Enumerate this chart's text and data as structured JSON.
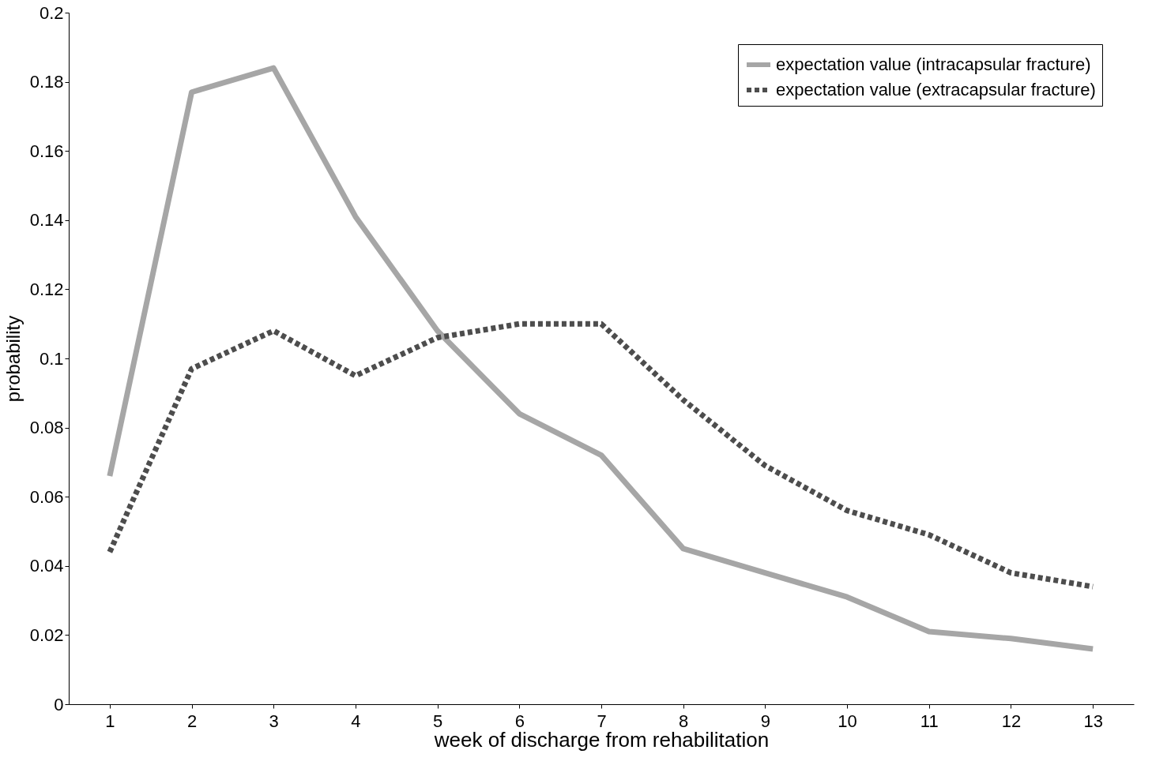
{
  "chart_data": {
    "type": "line",
    "xlabel": "week of discharge from rehabilitation",
    "ylabel": "probability",
    "x": [
      1,
      2,
      3,
      4,
      5,
      6,
      7,
      8,
      9,
      10,
      11,
      12,
      13
    ],
    "series": [
      {
        "name": "expectation value (intracapsular fracture)",
        "color": "#a6a6a6",
        "line_style": "solid",
        "values": [
          0.066,
          0.177,
          0.184,
          0.141,
          0.108,
          0.084,
          0.072,
          0.045,
          0.038,
          0.031,
          0.021,
          0.019,
          0.016
        ]
      },
      {
        "name": "expectation value (extracapsular fracture)",
        "color": "#4d4d4d",
        "line_style": "dotted",
        "values": [
          0.044,
          0.097,
          0.108,
          0.095,
          0.106,
          0.11,
          0.11,
          0.088,
          0.069,
          0.056,
          0.049,
          0.038,
          0.034
        ]
      }
    ],
    "xlim": [
      0.5,
      13.5
    ],
    "xticks": [
      1,
      2,
      3,
      4,
      5,
      6,
      7,
      8,
      9,
      10,
      11,
      12,
      13
    ],
    "ylim": [
      0,
      0.2
    ],
    "yticks": [
      0,
      0.02,
      0.04,
      0.06,
      0.08,
      0.1,
      0.12,
      0.14,
      0.16,
      0.18,
      0.2
    ],
    "grid": false,
    "legend": "top right",
    "marker": "none"
  }
}
